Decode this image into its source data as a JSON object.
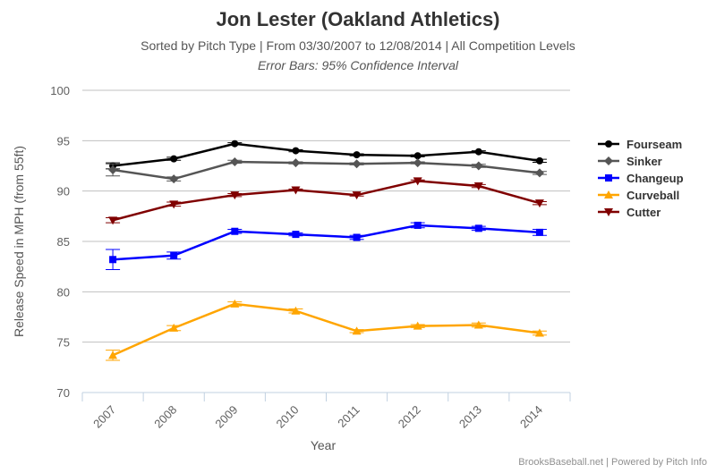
{
  "chart_data": {
    "type": "line",
    "title": "Jon Lester (Oakland Athletics)",
    "subtitle": "Sorted by Pitch Type | From 03/30/2007 to 12/08/2014 | All Competition Levels",
    "subtitle2": "Error Bars: 95% Confidence Interval",
    "xlabel": "Year",
    "ylabel": "Release Speed in MPH (from 55ft)",
    "categories": [
      "2007",
      "2008",
      "2009",
      "2010",
      "2011",
      "2012",
      "2013",
      "2014"
    ],
    "ylim": [
      70,
      100
    ],
    "yticks": [
      70,
      75,
      80,
      85,
      90,
      95,
      100
    ],
    "legend_position": "right",
    "series": [
      {
        "name": "Fourseam",
        "color": "#000000",
        "marker": "circle",
        "values": [
          92.5,
          93.2,
          94.7,
          94.0,
          93.6,
          93.5,
          93.9,
          93.0
        ],
        "err": [
          0.3,
          0.15,
          0.1,
          0.1,
          0.1,
          0.1,
          0.1,
          0.15
        ]
      },
      {
        "name": "Sinker",
        "color": "#555555",
        "marker": "diamond",
        "values": [
          92.1,
          91.2,
          92.9,
          92.8,
          92.7,
          92.8,
          92.5,
          91.8
        ],
        "err": [
          0.6,
          0.2,
          0.15,
          0.1,
          0.1,
          0.1,
          0.15,
          0.15
        ]
      },
      {
        "name": "Changeup",
        "color": "#0000ff",
        "marker": "square",
        "values": [
          83.2,
          83.6,
          86.0,
          85.7,
          85.4,
          86.6,
          86.3,
          85.9
        ],
        "err": [
          1.0,
          0.35,
          0.2,
          0.15,
          0.2,
          0.25,
          0.2,
          0.3
        ]
      },
      {
        "name": "Curveball",
        "color": "#ffa500",
        "marker": "triangle",
        "values": [
          73.7,
          76.4,
          78.8,
          78.1,
          76.1,
          76.6,
          76.7,
          75.9
        ],
        "err": [
          0.5,
          0.25,
          0.2,
          0.2,
          0.15,
          0.15,
          0.2,
          0.2
        ]
      },
      {
        "name": "Cutter",
        "color": "#800000",
        "marker": "triangle-down",
        "values": [
          87.1,
          88.7,
          89.6,
          90.1,
          89.6,
          91.0,
          90.5,
          88.8
        ],
        "err": [
          0.25,
          0.2,
          0.15,
          0.1,
          0.1,
          0.1,
          0.15,
          0.15
        ]
      }
    ]
  },
  "credit": "BrooksBaseball.net | Powered by Pitch Info"
}
